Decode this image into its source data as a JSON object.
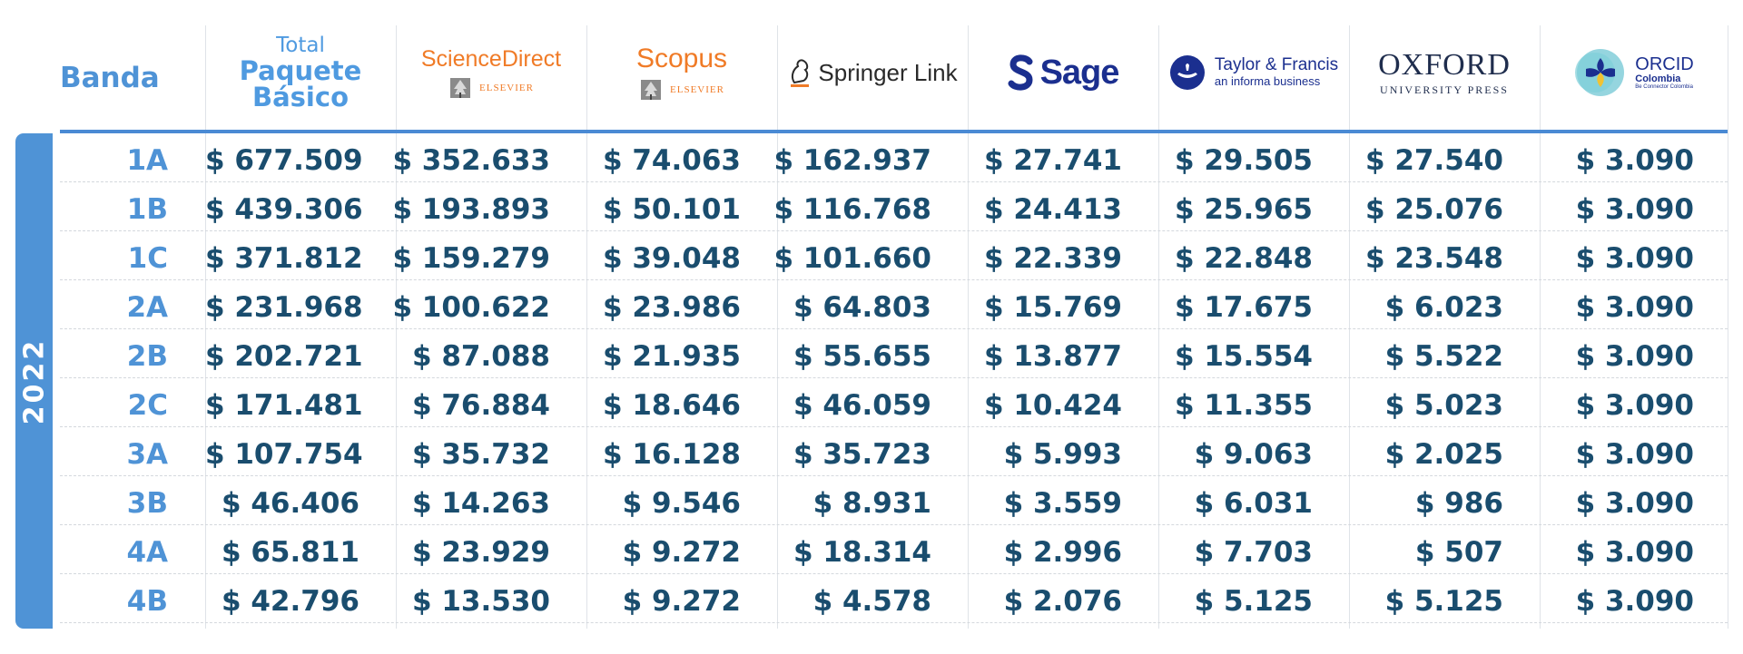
{
  "header": {
    "banda_label": "Banda",
    "total_label_1": "Total",
    "total_label_2": "Paquete",
    "total_label_3": "Básico",
    "sciencedirect": "ScienceDirect",
    "scopus": "Scopus",
    "elsevier": "ELSEVIER",
    "springer": "Springer Link",
    "sage": "Sage",
    "tf_name": "Taylor & Francis",
    "tf_sub": "an informa business",
    "oxford": "OXFORD",
    "oxford_sub": "UNIVERSITY PRESS",
    "orcid": "ORCID",
    "orcid_sub": "Colombia",
    "orcid_tag": "Be Connector Colombia"
  },
  "year": "2022",
  "colors": {
    "accent_blue": "#4f93d6",
    "value_navy": "#1a4d6e",
    "sciencedirect_orange": "#f07b27",
    "sage_blue": "#1b2f8f"
  },
  "rows": [
    {
      "band": "1A",
      "values": [
        "$ 677.509",
        "$ 352.633",
        "$ 74.063",
        "$ 162.937",
        "$ 27.741",
        "$ 29.505",
        "$ 27.540",
        "$ 3.090"
      ]
    },
    {
      "band": "1B",
      "values": [
        "$ 439.306",
        "$ 193.893",
        "$ 50.101",
        "$ 116.768",
        "$ 24.413",
        "$ 25.965",
        "$ 25.076",
        "$ 3.090"
      ]
    },
    {
      "band": "1C",
      "values": [
        "$ 371.812",
        "$ 159.279",
        "$ 39.048",
        "$ 101.660",
        "$ 22.339",
        "$ 22.848",
        "$ 23.548",
        "$ 3.090"
      ]
    },
    {
      "band": "2A",
      "values": [
        "$ 231.968",
        "$ 100.622",
        "$ 23.986",
        "$ 64.803",
        "$ 15.769",
        "$ 17.675",
        "$ 6.023",
        "$ 3.090"
      ]
    },
    {
      "band": "2B",
      "values": [
        "$ 202.721",
        "$ 87.088",
        "$ 21.935",
        "$ 55.655",
        "$ 13.877",
        "$ 15.554",
        "$ 5.522",
        "$ 3.090"
      ]
    },
    {
      "band": "2C",
      "values": [
        "$ 171.481",
        "$ 76.884",
        "$ 18.646",
        "$ 46.059",
        "$ 10.424",
        "$ 11.355",
        "$ 5.023",
        "$ 3.090"
      ]
    },
    {
      "band": "3A",
      "values": [
        "$ 107.754",
        "$ 35.732",
        "$ 16.128",
        "$ 35.723",
        "$ 5.993",
        "$ 9.063",
        "$ 2.025",
        "$ 3.090"
      ]
    },
    {
      "band": "3B",
      "values": [
        "$ 46.406",
        "$ 14.263",
        "$ 9.546",
        "$ 8.931",
        "$ 3.559",
        "$ 6.031",
        "$ 986",
        "$ 3.090"
      ]
    },
    {
      "band": "4A",
      "values": [
        "$ 65.811",
        "$ 23.929",
        "$ 9.272",
        "$ 18.314",
        "$ 2.996",
        "$ 7.703",
        "$ 507",
        "$ 3.090"
      ]
    },
    {
      "band": "4B",
      "values": [
        "$ 42.796",
        "$ 13.530",
        "$ 9.272",
        "$ 4.578",
        "$ 2.076",
        "$ 5.125",
        "$ 5.125",
        "$ 3.090"
      ]
    }
  ]
}
